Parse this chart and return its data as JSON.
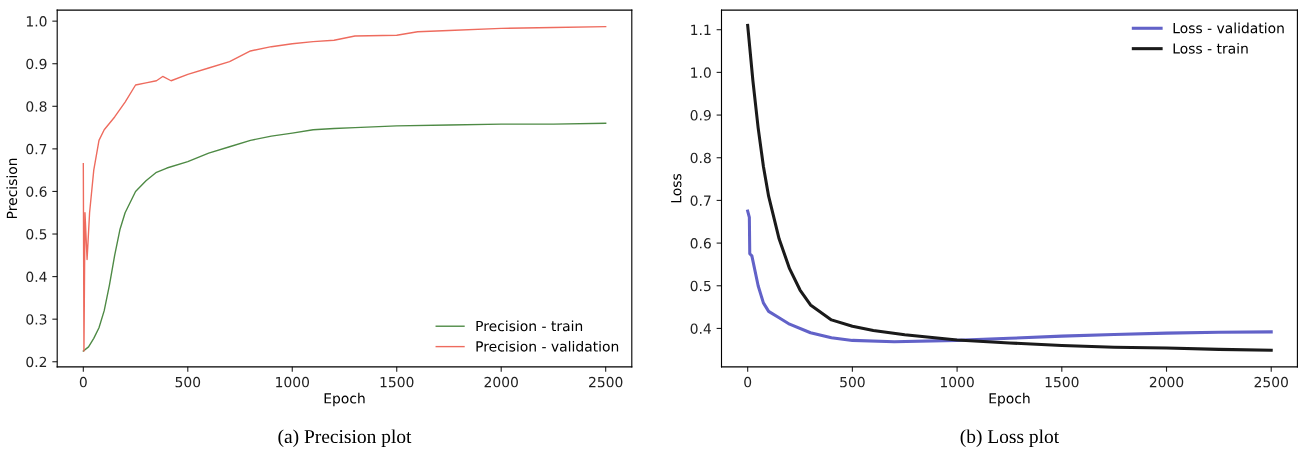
{
  "chart_data": [
    {
      "type": "line",
      "title": "(a) Precision plot",
      "xlabel": "Epoch",
      "ylabel": "Precision",
      "xlim": [
        -125,
        2625
      ],
      "xticks": [
        0,
        500,
        1000,
        1500,
        2000,
        2500
      ],
      "ylim": [
        0.188,
        1.026
      ],
      "yticks": [
        0.2,
        0.3,
        0.4,
        0.5,
        0.6,
        0.7,
        0.8,
        0.9,
        {
          "value": 1,
          "label": "1.0"
        }
      ],
      "grid": false,
      "legend": "lower right",
      "marker": "none",
      "line_style": "solid",
      "series": [
        {
          "name": "Precision - train",
          "color": "#4e8a45",
          "x": [
            0,
            25,
            50,
            75,
            100,
            125,
            150,
            175,
            200,
            250,
            300,
            350,
            400,
            500,
            600,
            700,
            800,
            900,
            1000,
            1100,
            1200,
            1300,
            1500,
            1750,
            2000,
            2250,
            2500
          ],
          "values": [
            0.225,
            0.235,
            0.255,
            0.28,
            0.32,
            0.38,
            0.45,
            0.51,
            0.55,
            0.6,
            0.625,
            0.645,
            0.655,
            0.67,
            0.69,
            0.705,
            0.72,
            0.73,
            0.737,
            0.745,
            0.748,
            0.75,
            0.754,
            0.756,
            0.758,
            0.758,
            0.76
          ]
        },
        {
          "name": "Precision - validation",
          "color": "#ee6b5e",
          "x": [
            0,
            3,
            8,
            18,
            30,
            50,
            75,
            100,
            150,
            200,
            250,
            300,
            350,
            380,
            420,
            500,
            600,
            700,
            800,
            900,
            1000,
            1100,
            1200,
            1300,
            1500,
            1600,
            1750,
            2000,
            2250,
            2500
          ],
          "values": [
            0.665,
            0.225,
            0.55,
            0.44,
            0.55,
            0.65,
            0.72,
            0.745,
            0.775,
            0.81,
            0.85,
            0.855,
            0.86,
            0.87,
            0.86,
            0.875,
            0.89,
            0.905,
            0.93,
            0.94,
            0.947,
            0.952,
            0.955,
            0.965,
            0.967,
            0.975,
            0.978,
            0.983,
            0.985,
            0.987
          ]
        }
      ]
    },
    {
      "type": "line",
      "title": "(b) Loss plot",
      "xlabel": "Epoch",
      "ylabel": "Loss",
      "xlim": [
        -125,
        2625
      ],
      "xticks": [
        0,
        500,
        1000,
        1500,
        2000,
        2500
      ],
      "ylim": [
        0.31,
        1.146
      ],
      "yticks": [
        0.4,
        0.5,
        0.6,
        0.7,
        0.8,
        0.9,
        {
          "value": 1,
          "label": "1.0"
        },
        1.1
      ],
      "grid": false,
      "legend": "upper right",
      "marker": "none",
      "line_style": "solid",
      "series": [
        {
          "name": "Loss - validation",
          "color": "#6262c8",
          "x": [
            0,
            8,
            10,
            20,
            50,
            75,
            100,
            150,
            200,
            300,
            400,
            500,
            700,
            1000,
            1250,
            1500,
            1750,
            2000,
            2250,
            2500
          ],
          "values": [
            0.675,
            0.66,
            0.575,
            0.57,
            0.5,
            0.46,
            0.44,
            0.425,
            0.41,
            0.39,
            0.378,
            0.372,
            0.369,
            0.372,
            0.377,
            0.382,
            0.386,
            0.389,
            0.391,
            0.392
          ]
        },
        {
          "name": "Loss - train",
          "color": "#1a1a1a",
          "x": [
            0,
            25,
            50,
            75,
            100,
            150,
            200,
            250,
            300,
            400,
            500,
            600,
            750,
            1000,
            1250,
            1500,
            1750,
            2000,
            2250,
            2500
          ],
          "values": [
            1.11,
            0.98,
            0.87,
            0.78,
            0.71,
            0.61,
            0.54,
            0.49,
            0.455,
            0.42,
            0.405,
            0.395,
            0.385,
            0.373,
            0.366,
            0.36,
            0.356,
            0.354,
            0.351,
            0.349
          ]
        }
      ]
    }
  ]
}
